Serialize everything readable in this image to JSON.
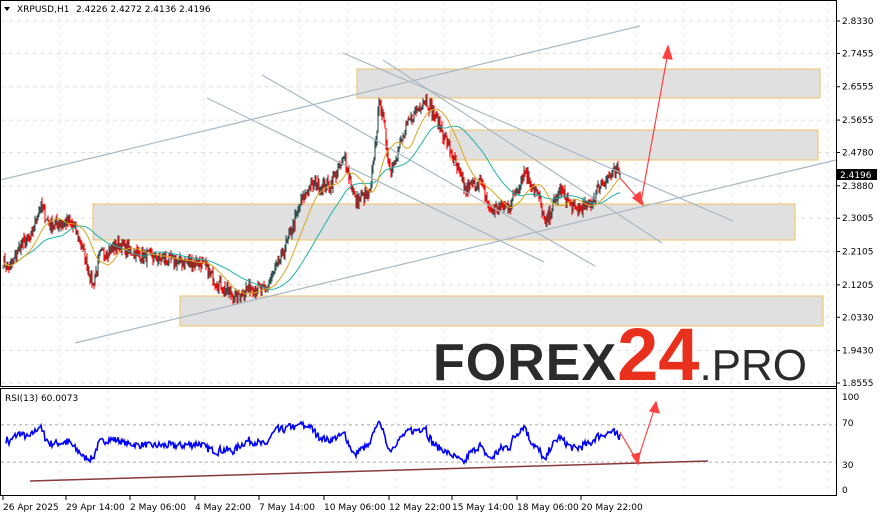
{
  "header": {
    "symbol": "XRPUSD,H1",
    "ohlc": "2.4226 2.4272 2.4136 2.4196"
  },
  "logo": {
    "part1": "FOREX",
    "part2": "24",
    "part3": ".PRO"
  },
  "rsi": {
    "label": "RSI(13) 60.0073",
    "ticks": [
      "100",
      "70",
      "30",
      "0"
    ]
  },
  "colors": {
    "bull": "#2f4f4f",
    "bear": "#ff0000",
    "ma_fast": "#daa520",
    "ma_slow": "#20b2aa",
    "rsi": "#0000ff",
    "arrow": "#ff4040",
    "zone_border": "#f0c060",
    "zone_fill": "#e0e0e0",
    "trendline": "#a8b8c4"
  },
  "chart_data": [
    {
      "type": "line",
      "title": "XRPUSD,H1",
      "ylim": [
        1.8555,
        2.833
      ],
      "y_ticks": [
        "2.8330",
        "2.7455",
        "2.6555",
        "2.5655",
        "2.4780",
        "2.3880",
        "2.3005",
        "2.2105",
        "2.1205",
        "2.0330",
        "1.9430",
        "1.8555"
      ],
      "x_ticks": [
        "26 Apr 2025",
        "29 Apr 14:00",
        "2 May 06:00",
        "4 May 22:00",
        "7 May 14:00",
        "10 May 06:00",
        "12 May 22:00",
        "15 May 14:00",
        "18 May 06:00",
        "20 May 22:00"
      ],
      "last_price": "2.4196",
      "close_path": [
        [
          "2025-04-26 02:00",
          2.182
        ],
        [
          "2025-04-26 09:00",
          2.165
        ],
        [
          "2025-04-26 19:00",
          2.228
        ],
        [
          "2025-04-27 05:00",
          2.241
        ],
        [
          "2025-04-27 15:00",
          2.336
        ],
        [
          "2025-04-28 01:00",
          2.282
        ],
        [
          "2025-04-28 21:00",
          2.29
        ],
        [
          "2025-04-29 07:00",
          2.241
        ],
        [
          "2025-04-29 20:00",
          2.119
        ],
        [
          "2025-04-30 03:00",
          2.201
        ],
        [
          "2025-04-30 21:00",
          2.228
        ],
        [
          "2025-05-01 19:00",
          2.201
        ],
        [
          "2025-05-02 15:00",
          2.192
        ],
        [
          "2025-05-03 11:00",
          2.182
        ],
        [
          "2025-05-04 07:00",
          2.182
        ],
        [
          "2025-05-04 22:00",
          2.133
        ],
        [
          "2025-05-05 18:00",
          2.084
        ],
        [
          "2025-05-06 09:00",
          2.119
        ],
        [
          "2025-05-07 00:00",
          2.101
        ],
        [
          "2025-05-07 15:00",
          2.187
        ],
        [
          "2025-05-08 01:00",
          2.255
        ],
        [
          "2025-05-08 11:00",
          2.336
        ],
        [
          "2025-05-08 21:00",
          2.39
        ],
        [
          "2025-05-09 17:00",
          2.39
        ],
        [
          "2025-05-10 08:00",
          2.463
        ],
        [
          "2025-05-10 18:00",
          2.349
        ],
        [
          "2025-05-11 09:00",
          2.363
        ],
        [
          "2025-05-11 19:00",
          2.625
        ],
        [
          "2025-05-12 05:00",
          2.43
        ],
        [
          "2025-05-12 13:00",
          2.484
        ],
        [
          "2025-05-13 01:00",
          2.565
        ],
        [
          "2025-05-13 16:00",
          2.625
        ],
        [
          "2025-05-14 07:00",
          2.552
        ],
        [
          "2025-05-14 17:00",
          2.484
        ],
        [
          "2025-05-15 08:00",
          2.376
        ],
        [
          "2025-05-15 23:00",
          2.403
        ],
        [
          "2025-05-16 09:00",
          2.322
        ],
        [
          "2025-05-17 05:00",
          2.336
        ],
        [
          "2025-05-17 20:00",
          2.43
        ],
        [
          "2025-05-18 11:00",
          2.349
        ],
        [
          "2025-05-18 16:00",
          2.282
        ],
        [
          "2025-05-19 07:00",
          2.376
        ],
        [
          "2025-05-19 22:00",
          2.322
        ],
        [
          "2025-05-20 13:00",
          2.336
        ],
        [
          "2025-05-20 23:00",
          2.39
        ],
        [
          "2025-05-21 09:00",
          2.417
        ],
        [
          "2025-05-21 16:00",
          2.425
        ],
        [
          "2025-05-21 19:00",
          2.4196
        ]
      ]
    },
    {
      "type": "line",
      "title": "RSI(13) 60.0073",
      "ylim": [
        0,
        100
      ],
      "levels": [
        70,
        30
      ],
      "last_value": 60.0073
    }
  ]
}
